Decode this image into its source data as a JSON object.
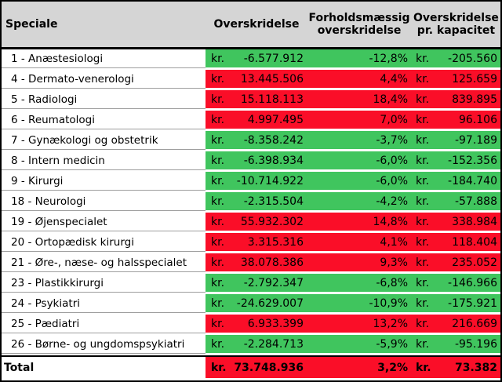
{
  "header": {
    "speciale": "Speciale",
    "overskridelse": "Overskridelse",
    "forholdsmaessig": "Forholdsmæssig overskridelse",
    "pr_kapacitet": "Overskridelse pr. kapacitet"
  },
  "currency_prefix": "kr.",
  "colors": {
    "over_bg": "#fa0e28",
    "under_bg": "#40c55e",
    "header_bg": "#d5d5d5",
    "grid_line": "#9e9e9e",
    "border": "#000000",
    "text": "#000000"
  },
  "chart_data": {
    "type": "table",
    "columns": [
      "Speciale",
      "Overskridelse",
      "Forholdsmæssig overskridelse",
      "Overskridelse pr. kapacitet"
    ],
    "rows": [
      {
        "speciale": "1 - Anæstesiologi",
        "overskridelse": "-6.577.912",
        "forholdsmaessig": "-12,8%",
        "pr_kapacitet": "-205.560",
        "status": "under"
      },
      {
        "speciale": "4 - Dermato-venerologi",
        "overskridelse": "13.445.506",
        "forholdsmaessig": "4,4%",
        "pr_kapacitet": "125.659",
        "status": "over"
      },
      {
        "speciale": "5 - Radiologi",
        "overskridelse": "15.118.113",
        "forholdsmaessig": "18,4%",
        "pr_kapacitet": "839.895",
        "status": "over"
      },
      {
        "speciale": "6 - Reumatologi",
        "overskridelse": "4.997.495",
        "forholdsmaessig": "7,0%",
        "pr_kapacitet": "96.106",
        "status": "over"
      },
      {
        "speciale": "7 - Gynækologi og obstetrik",
        "overskridelse": "-8.358.242",
        "forholdsmaessig": "-3,7%",
        "pr_kapacitet": "-97.189",
        "status": "under"
      },
      {
        "speciale": "8 - Intern medicin",
        "overskridelse": "-6.398.934",
        "forholdsmaessig": "-6,0%",
        "pr_kapacitet": "-152.356",
        "status": "under"
      },
      {
        "speciale": "9 - Kirurgi",
        "overskridelse": "-10.714.922",
        "forholdsmaessig": "-6,0%",
        "pr_kapacitet": "-184.740",
        "status": "under"
      },
      {
        "speciale": "18 - Neurologi",
        "overskridelse": "-2.315.504",
        "forholdsmaessig": "-4,2%",
        "pr_kapacitet": "-57.888",
        "status": "under"
      },
      {
        "speciale": "19 - Øjenspecialet",
        "overskridelse": "55.932.302",
        "forholdsmaessig": "14,8%",
        "pr_kapacitet": "338.984",
        "status": "over"
      },
      {
        "speciale": "20 - Ortopædisk kirurgi",
        "overskridelse": "3.315.316",
        "forholdsmaessig": "4,1%",
        "pr_kapacitet": "118.404",
        "status": "over"
      },
      {
        "speciale": "21 - Øre-, næse- og halsspecialet",
        "overskridelse": "38.078.386",
        "forholdsmaessig": "9,3%",
        "pr_kapacitet": "235.052",
        "status": "over"
      },
      {
        "speciale": "23 - Plastikkirurgi",
        "overskridelse": "-2.792.347",
        "forholdsmaessig": "-6,8%",
        "pr_kapacitet": "-146.966",
        "status": "under"
      },
      {
        "speciale": "24 - Psykiatri",
        "overskridelse": "-24.629.007",
        "forholdsmaessig": "-10,9%",
        "pr_kapacitet": "-175.921",
        "status": "under"
      },
      {
        "speciale": "25 - Pædiatri",
        "overskridelse": "6.933.399",
        "forholdsmaessig": "13,2%",
        "pr_kapacitet": "216.669",
        "status": "over"
      },
      {
        "speciale": "26 - Børne- og ungdomspsykiatri",
        "overskridelse": "-2.284.713",
        "forholdsmaessig": "-5,9%",
        "pr_kapacitet": "-95.196",
        "status": "under"
      }
    ],
    "total": {
      "speciale": "Total",
      "overskridelse": "73.748.936",
      "forholdsmaessig": "3,2%",
      "pr_kapacitet": "73.382",
      "status": "over"
    }
  }
}
